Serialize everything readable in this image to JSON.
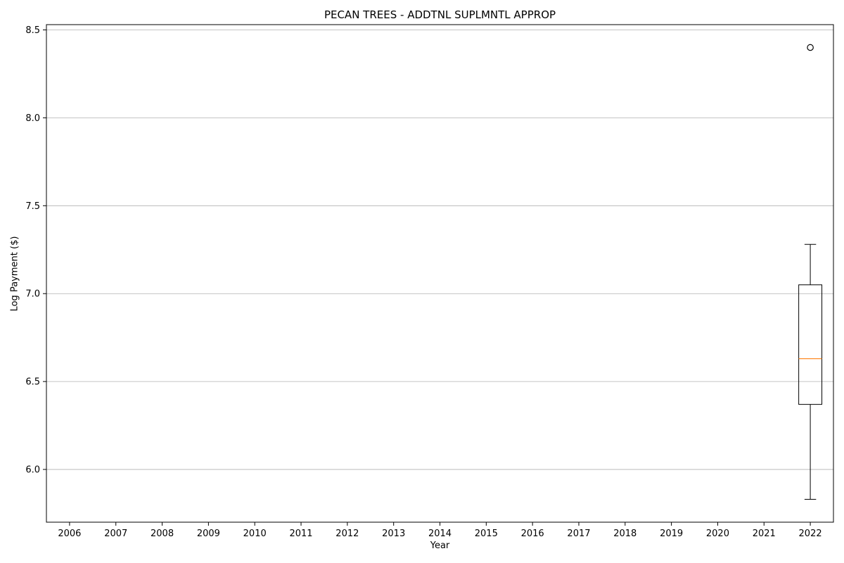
{
  "chart_data": {
    "type": "box",
    "title": "PECAN TREES - ADDTNL SUPLMNTL APPROP",
    "xlabel": "Year",
    "ylabel": "Log Payment ($)",
    "categories": [
      "2006",
      "2007",
      "2008",
      "2009",
      "2010",
      "2011",
      "2012",
      "2013",
      "2014",
      "2015",
      "2016",
      "2017",
      "2018",
      "2019",
      "2020",
      "2021",
      "2022"
    ],
    "ylim": [
      5.7,
      8.53
    ],
    "yticks": [
      6.0,
      6.5,
      7.0,
      7.5,
      8.0,
      8.5
    ],
    "ytick_labels": [
      "6.0",
      "6.5",
      "7.0",
      "7.5",
      "8.0",
      "8.5"
    ],
    "grid": "y",
    "boxes": [
      {
        "category": "2022",
        "whisker_low": 5.83,
        "q1": 6.37,
        "median": 6.63,
        "q3": 7.05,
        "whisker_high": 7.28,
        "outliers": [
          8.4
        ]
      }
    ],
    "colors": {
      "median": "#ff7f0e",
      "box": "#000000",
      "grid": "#b0b0b0"
    }
  }
}
